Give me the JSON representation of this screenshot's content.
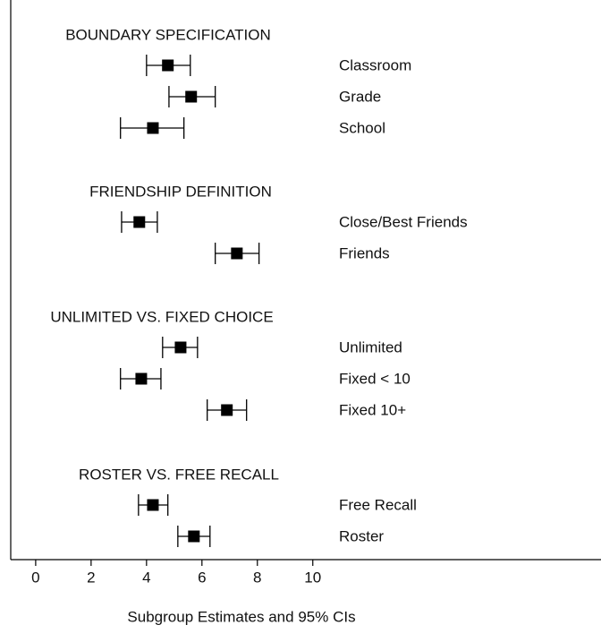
{
  "chart_data": {
    "type": "forest",
    "xlabel": "Subgroup Estimates and 95% CIs",
    "xlim": [
      -0.9,
      20.4
    ],
    "xticks": [
      0,
      2,
      4,
      6,
      8,
      10
    ],
    "color": "#000000",
    "groups": [
      {
        "title": "BOUNDARY SPECIFICATION",
        "categories": [
          "Classroom",
          "Grade",
          "School"
        ],
        "values": [
          4.77,
          5.61,
          4.23
        ],
        "lower": [
          4.0,
          4.81,
          3.06
        ],
        "upper": [
          5.58,
          6.48,
          5.35
        ]
      },
      {
        "title": "FRIENDSHIP DEFINITION",
        "categories": [
          "Close/Best Friends",
          "Friends"
        ],
        "values": [
          3.74,
          7.26
        ],
        "lower": [
          3.1,
          6.48
        ],
        "upper": [
          4.39,
          8.06
        ]
      },
      {
        "title": "UNLIMITED VS. FIXED CHOICE",
        "categories": [
          "Unlimited",
          "Fixed < 10",
          "Fixed 10+"
        ],
        "values": [
          5.23,
          3.81,
          6.9
        ],
        "lower": [
          4.58,
          3.06,
          6.19
        ],
        "upper": [
          5.84,
          4.52,
          7.61
        ]
      },
      {
        "title": "ROSTER VS. FREE RECALL",
        "categories": [
          "Free Recall",
          "Roster"
        ],
        "values": [
          4.23,
          5.71
        ],
        "lower": [
          3.71,
          5.13
        ],
        "upper": [
          4.77,
          6.29
        ]
      }
    ]
  }
}
